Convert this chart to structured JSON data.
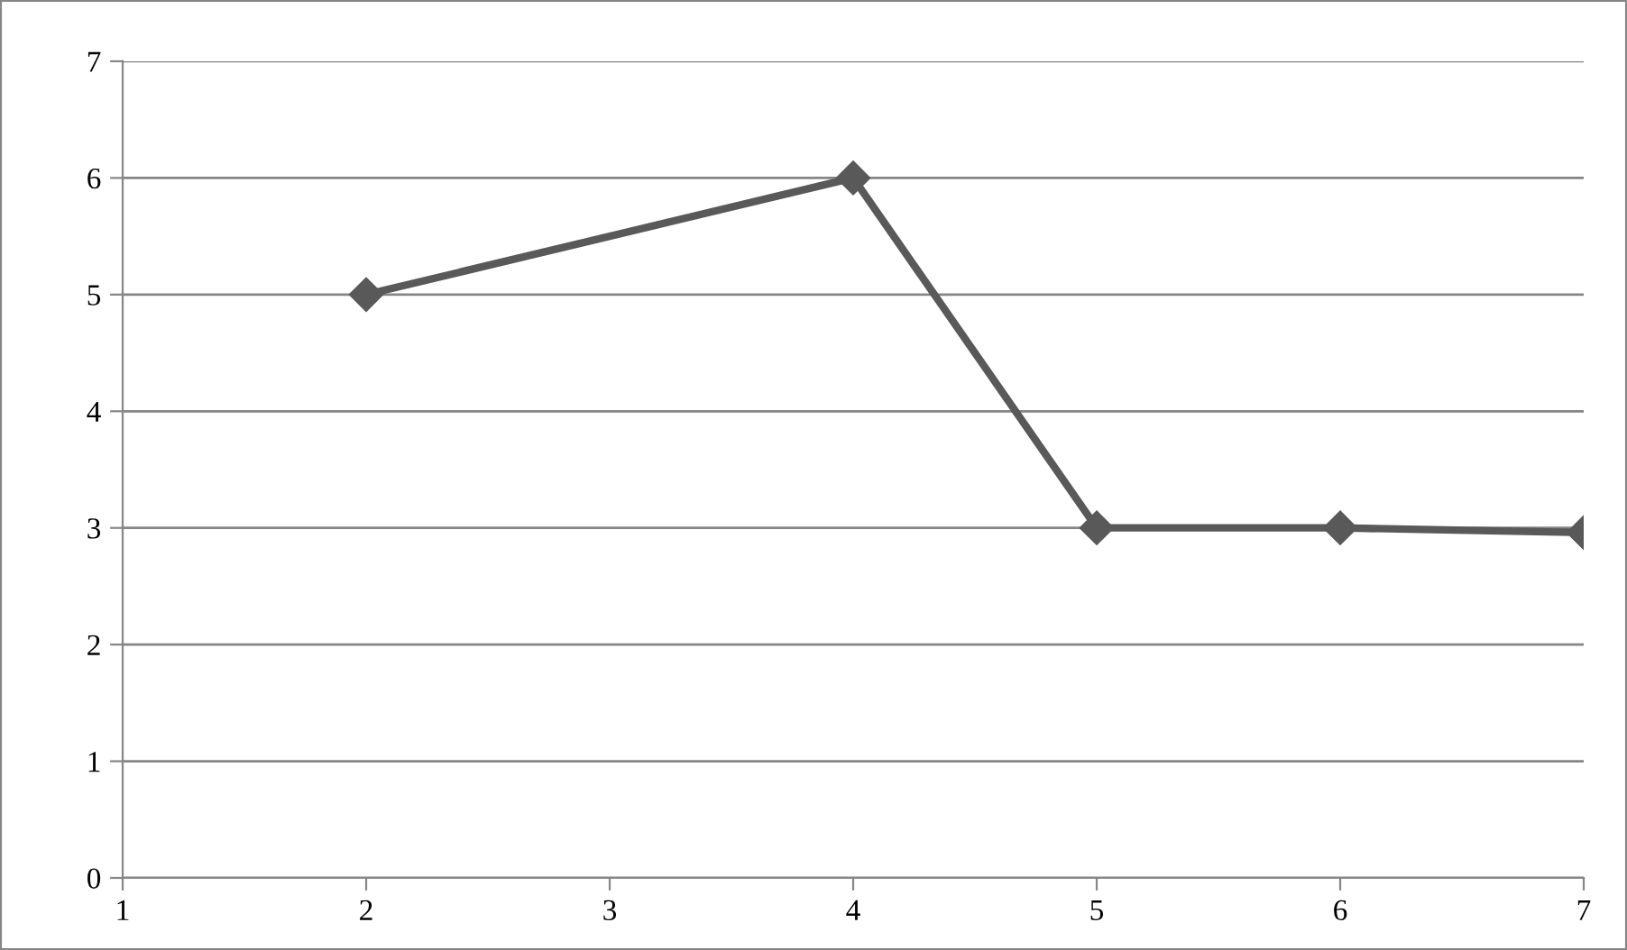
{
  "chart_data": {
    "type": "line",
    "x": [
      2,
      4,
      5,
      6,
      7
    ],
    "series": [
      {
        "color": "#595959",
        "values": [
          5,
          6,
          3,
          3,
          2.96
        ]
      }
    ],
    "xlim": [
      1,
      7
    ],
    "xticks": [
      1,
      2,
      3,
      4,
      5,
      6,
      7
    ],
    "ylim": [
      0,
      7
    ],
    "yticks": [
      0,
      1,
      2,
      3,
      4,
      5,
      6,
      7
    ],
    "grid": "y",
    "marker": "diamond",
    "line_style": "solid"
  }
}
